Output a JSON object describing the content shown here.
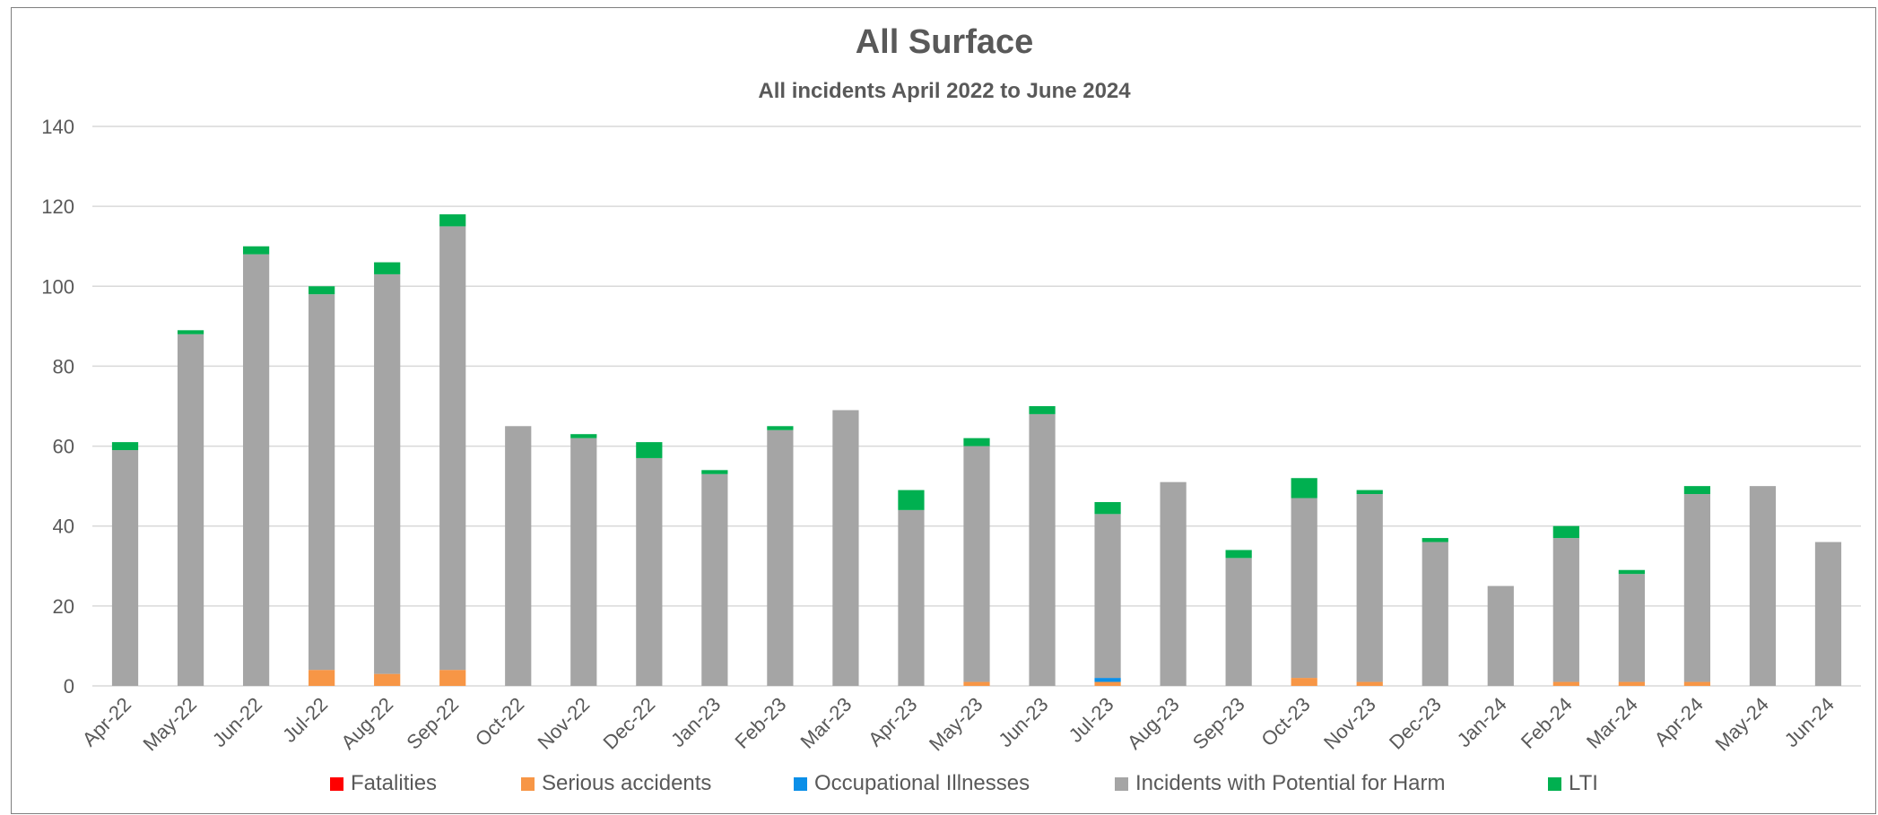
{
  "chart_data": {
    "type": "bar",
    "stacked": true,
    "title": "All Surface",
    "subtitle": "All incidents April 2022 to June 2024",
    "xlabel": "",
    "ylabel": "",
    "ylim": [
      0,
      140
    ],
    "yticks": [
      0,
      20,
      40,
      60,
      80,
      100,
      120,
      140
    ],
    "grid": true,
    "legend_position": "bottom",
    "categories": [
      "Apr-22",
      "May-22",
      "Jun-22",
      "Jul-22",
      "Aug-22",
      "Sep-22",
      "Oct-22",
      "Nov-22",
      "Dec-22",
      "Jan-23",
      "Feb-23",
      "Mar-23",
      "Apr-23",
      "May-23",
      "Jun-23",
      "Jul-23",
      "Aug-23",
      "Sep-23",
      "Oct-23",
      "Nov-23",
      "Dec-23",
      "Jan-24",
      "Feb-24",
      "Mar-24",
      "Apr-24",
      "May-24",
      "Jun-24"
    ],
    "series": [
      {
        "name": "Fatalities",
        "color": "#ff0000",
        "values": [
          0,
          0,
          0,
          0,
          0,
          0,
          0,
          0,
          0,
          0,
          0,
          0,
          0,
          0,
          0,
          0,
          0,
          0,
          0,
          0,
          0,
          0,
          0,
          0,
          0,
          0,
          0
        ]
      },
      {
        "name": "Serious accidents",
        "color": "#f79646",
        "values": [
          0,
          0,
          0,
          4,
          3,
          4,
          0,
          0,
          0,
          0,
          0,
          0,
          0,
          1,
          0,
          1,
          0,
          0,
          2,
          1,
          0,
          0,
          1,
          1,
          1,
          0,
          0
        ]
      },
      {
        "name": "Occupational Illnesses",
        "color": "#0b8fe8",
        "values": [
          0,
          0,
          0,
          0,
          0,
          0,
          0,
          0,
          0,
          0,
          0,
          0,
          0,
          0,
          0,
          1,
          0,
          0,
          0,
          0,
          0,
          0,
          0,
          0,
          0,
          0,
          0
        ]
      },
      {
        "name": "Incidents with Potential for Harm",
        "color": "#a5a5a5",
        "values": [
          59,
          88,
          108,
          94,
          100,
          111,
          65,
          62,
          57,
          53,
          64,
          69,
          44,
          59,
          68,
          41,
          51,
          32,
          45,
          47,
          36,
          25,
          36,
          27,
          47,
          50,
          36
        ]
      },
      {
        "name": "LTI",
        "color": "#00b050",
        "values": [
          2,
          1,
          2,
          2,
          3,
          3,
          0,
          1,
          4,
          1,
          1,
          0,
          5,
          2,
          2,
          3,
          0,
          2,
          5,
          1,
          1,
          0,
          3,
          1,
          2,
          0,
          0
        ]
      }
    ]
  }
}
